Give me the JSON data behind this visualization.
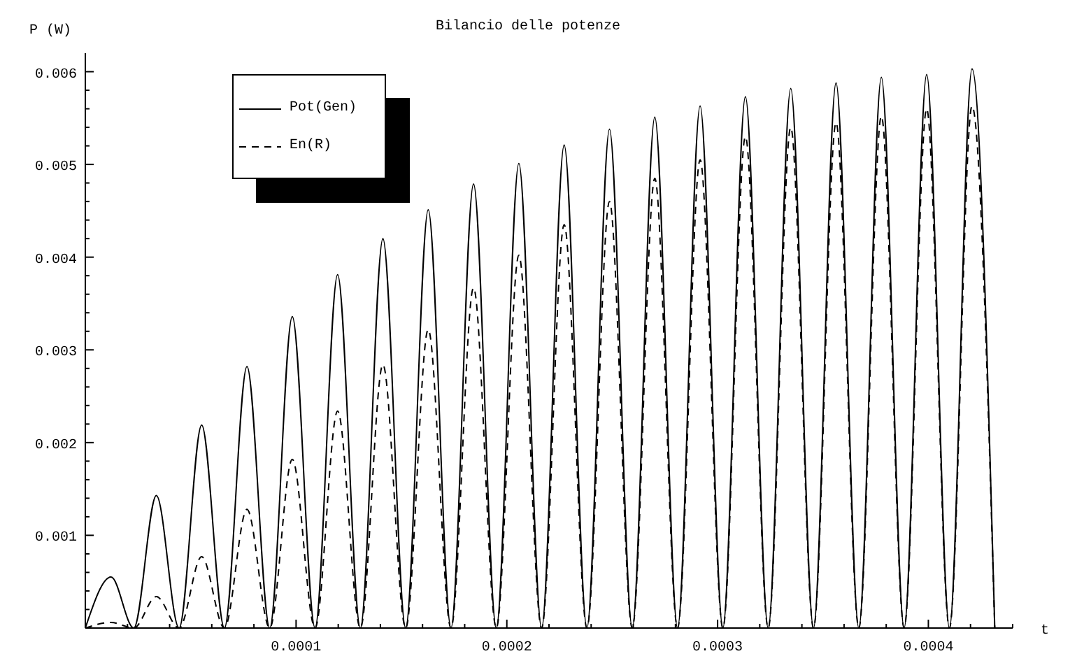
{
  "chart_data": {
    "type": "line",
    "title": "Bilancio delle potenze",
    "xlabel": "t",
    "ylabel": "P (W)",
    "x": [
      0,
      1.22e-05,
      2.3e-05,
      3.37e-05,
      4.45e-05,
      5.52e-05,
      6.6e-05,
      7.67e-05,
      8.75e-05,
      9.82e-05,
      0.000109,
      0.0001197,
      0.0001305,
      0.0001412,
      0.000152,
      0.0001627,
      0.0001735,
      0.0001842,
      0.000195,
      0.0002057,
      0.0002165,
      0.0002272,
      0.000238,
      0.0002487,
      0.0002595,
      0.0002702,
      0.000281,
      0.0002917,
      0.0003025,
      0.0003132,
      0.000324,
      0.0003347,
      0.0003455,
      0.0003562,
      0.000367,
      0.0003777,
      0.0003885,
      0.0003992,
      0.00041,
      0.0004207,
      0.0004315
    ],
    "series": [
      {
        "name": "Pot(Gen)",
        "color": "#000000",
        "line_style": "solid",
        "values": [
          0,
          0.00055,
          0,
          0.00143,
          0,
          0.00219,
          0,
          0.00282,
          0,
          0.00336,
          0,
          0.00381,
          0,
          0.0042,
          0,
          0.00451,
          0,
          0.00479,
          0,
          0.00501,
          0,
          0.00521,
          0,
          0.00538,
          0,
          0.00551,
          0,
          0.00563,
          0,
          0.00573,
          0,
          0.00582,
          0,
          0.00588,
          0,
          0.00594,
          0,
          0.00597,
          0,
          0.00603,
          0
        ]
      },
      {
        "name": "En(R)",
        "color": "#000000",
        "line_style": "dashed",
        "values": [
          0,
          6e-05,
          0,
          0.00034,
          0,
          0.00077,
          0,
          0.00128,
          0,
          0.00182,
          0,
          0.00234,
          0,
          0.00284,
          0,
          0.00322,
          0,
          0.00367,
          0,
          0.00402,
          0,
          0.00435,
          0,
          0.0046,
          0,
          0.00485,
          0,
          0.00505,
          0,
          0.0053,
          0,
          0.0054,
          0,
          0.00545,
          0,
          0.00552,
          0,
          0.0056,
          0,
          0.00563,
          0
        ]
      }
    ],
    "xlim": [
      0,
      0.00044
    ],
    "xticks": [
      {
        "value": 2e-05,
        "label": null
      },
      {
        "value": 4e-05,
        "label": null
      },
      {
        "value": 6e-05,
        "label": null
      },
      {
        "value": 8e-05,
        "label": null
      },
      0.0001,
      {
        "value": 0.00012,
        "label": null
      },
      {
        "value": 0.00014,
        "label": null
      },
      {
        "value": 0.00016,
        "label": null
      },
      {
        "value": 0.00018,
        "label": null
      },
      0.0002,
      {
        "value": 0.00022,
        "label": null
      },
      {
        "value": 0.00024,
        "label": null
      },
      {
        "value": 0.00026,
        "label": null
      },
      {
        "value": 0.00028,
        "label": null
      },
      0.0003,
      {
        "value": 0.00032,
        "label": null
      },
      {
        "value": 0.00034,
        "label": null
      },
      {
        "value": 0.00036,
        "label": null
      },
      {
        "value": 0.00038,
        "label": null
      },
      0.0004,
      {
        "value": 0.00042,
        "label": null
      },
      {
        "value": 0.00044,
        "label": null
      }
    ],
    "ylim": [
      0,
      0.0062
    ],
    "yticks": [
      {
        "value": 0.0002,
        "label": null
      },
      {
        "value": 0.0004,
        "label": null
      },
      {
        "value": 0.0006,
        "label": null
      },
      {
        "value": 0.0008,
        "label": null
      },
      0.001,
      {
        "value": 0.0012,
        "label": null
      },
      {
        "value": 0.0014,
        "label": null
      },
      {
        "value": 0.0016,
        "label": null
      },
      {
        "value": 0.0018,
        "label": null
      },
      0.002,
      {
        "value": 0.0022,
        "label": null
      },
      {
        "value": 0.0024,
        "label": null
      },
      {
        "value": 0.0026,
        "label": null
      },
      {
        "value": 0.0028,
        "label": null
      },
      0.003,
      {
        "value": 0.0032,
        "label": null
      },
      {
        "value": 0.0034,
        "label": null
      },
      {
        "value": 0.0036,
        "label": null
      },
      {
        "value": 0.0038,
        "label": null
      },
      0.004,
      {
        "value": 0.0042,
        "label": null
      },
      {
        "value": 0.0044,
        "label": null
      },
      {
        "value": 0.0046,
        "label": null
      },
      {
        "value": 0.0048,
        "label": null
      },
      0.005,
      {
        "value": 0.0052,
        "label": null
      },
      {
        "value": 0.0054,
        "label": null
      },
      {
        "value": 0.0056,
        "label": null
      },
      {
        "value": 0.0058,
        "label": null
      },
      0.006
    ],
    "grid": false,
    "legend": "top left",
    "marker": "none"
  }
}
